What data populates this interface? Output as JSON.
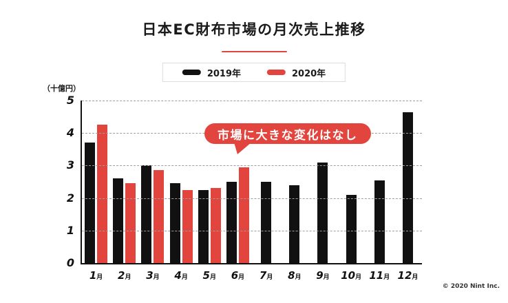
{
  "title": "日本EC財布市場の月次売上推移",
  "accent_color": "#E2453E",
  "legend": {
    "items": [
      {
        "label": "2019年",
        "color": "#111111"
      },
      {
        "label": "2020年",
        "color": "#E2453E"
      }
    ]
  },
  "y_axis": {
    "unit_label": "（十億円）",
    "ticks": [
      0,
      1,
      2,
      3,
      4,
      5
    ]
  },
  "callout": {
    "text": "市場に大きな変化はなし"
  },
  "footer": {
    "copyright": "© 2020 Nint Inc."
  },
  "chart_data": {
    "type": "bar",
    "title": "日本EC財布市場の月次売上推移",
    "categories": [
      "1月",
      "2月",
      "3月",
      "4月",
      "5月",
      "6月",
      "7月",
      "8月",
      "9月",
      "10月",
      "11月",
      "12月"
    ],
    "series": [
      {
        "name": "2019年",
        "color": "#111111",
        "values": [
          3.7,
          2.6,
          3.0,
          2.45,
          2.25,
          2.5,
          2.5,
          2.4,
          3.1,
          2.1,
          2.55,
          4.65
        ]
      },
      {
        "name": "2020年",
        "color": "#E2453E",
        "values": [
          4.25,
          2.45,
          2.85,
          2.25,
          2.3,
          2.95,
          null,
          null,
          null,
          null,
          null,
          null
        ]
      }
    ],
    "xlabel": "",
    "ylabel": "（十億円）",
    "ylim": [
      0,
      5
    ],
    "grid": "horizontal-dashed",
    "legend_position": "top-center",
    "annotation": {
      "text": "市場に大きな変化はなし",
      "near": "6月 2020 bar"
    }
  }
}
